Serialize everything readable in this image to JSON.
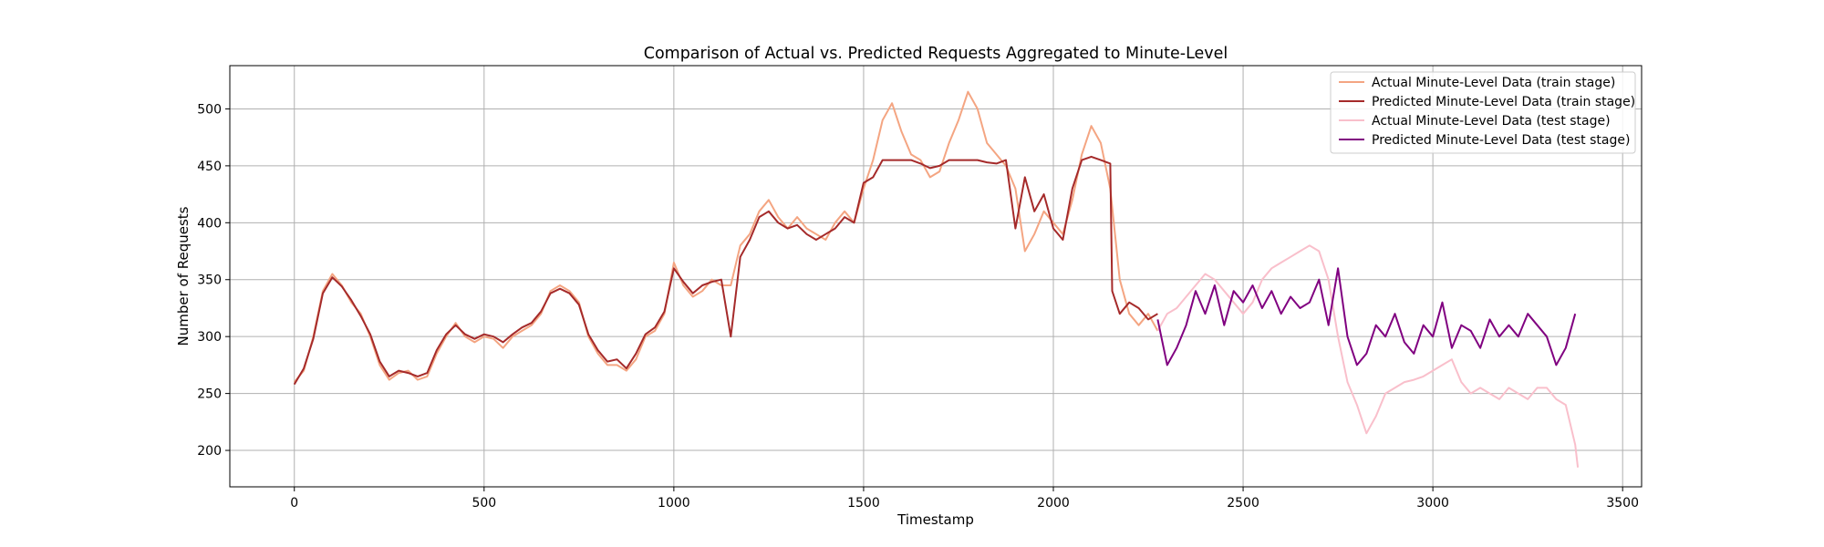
{
  "chart_data": {
    "type": "line",
    "title": "Comparison of Actual vs. Predicted Requests Aggregated to Minute-Level",
    "xlabel": "Timestamp",
    "ylabel": "Number of Requests",
    "xlim": [
      -170,
      3550
    ],
    "ylim": [
      168,
      538
    ],
    "xticks": [
      0,
      500,
      1000,
      1500,
      2000,
      2500,
      3000,
      3500
    ],
    "yticks": [
      200,
      250,
      300,
      350,
      400,
      450,
      500
    ],
    "grid": true,
    "legend_position": "top-right",
    "series": [
      {
        "name": "Actual Minute-Level Data (train stage)",
        "color": "#f4a582",
        "x": [
          0,
          25,
          50,
          75,
          100,
          125,
          150,
          175,
          200,
          225,
          250,
          275,
          300,
          325,
          350,
          375,
          400,
          425,
          450,
          475,
          500,
          525,
          550,
          575,
          600,
          625,
          650,
          675,
          700,
          725,
          750,
          775,
          800,
          825,
          850,
          875,
          900,
          925,
          950,
          975,
          1000,
          1025,
          1050,
          1075,
          1100,
          1125,
          1150,
          1175,
          1200,
          1225,
          1250,
          1275,
          1300,
          1325,
          1350,
          1375,
          1400,
          1425,
          1450,
          1475,
          1500,
          1525,
          1550,
          1575,
          1600,
          1625,
          1650,
          1675,
          1700,
          1725,
          1750,
          1775,
          1800,
          1825,
          1850,
          1875,
          1900,
          1925,
          1950,
          1975,
          2000,
          2025,
          2050,
          2075,
          2100,
          2125,
          2150,
          2175,
          2200,
          2225,
          2250,
          2275
        ],
        "y": [
          260,
          270,
          300,
          340,
          355,
          345,
          330,
          320,
          300,
          275,
          262,
          268,
          270,
          262,
          265,
          285,
          300,
          312,
          300,
          295,
          300,
          298,
          290,
          300,
          305,
          310,
          320,
          340,
          345,
          340,
          330,
          300,
          285,
          275,
          275,
          270,
          280,
          300,
          305,
          320,
          365,
          345,
          335,
          340,
          350,
          345,
          345,
          380,
          390,
          410,
          420,
          405,
          395,
          405,
          395,
          390,
          385,
          400,
          410,
          400,
          430,
          455,
          490,
          505,
          480,
          460,
          455,
          440,
          445,
          470,
          490,
          515,
          500,
          470,
          460,
          450,
          430,
          375,
          390,
          410,
          400,
          390,
          420,
          460,
          485,
          470,
          430,
          350,
          320,
          310,
          320,
          305
        ],
        "values": [
          260,
          270,
          300,
          340,
          355,
          345,
          330,
          320,
          300,
          275,
          262,
          268,
          270,
          262,
          265,
          285,
          300,
          312,
          300,
          295,
          300,
          298,
          290,
          300,
          305,
          310,
          320,
          340,
          345,
          340,
          330,
          300,
          285,
          275,
          275,
          270,
          280,
          300,
          305,
          320,
          365,
          345,
          335,
          340,
          350,
          345,
          345,
          380,
          390,
          410,
          420,
          405,
          395,
          405,
          395,
          390,
          385,
          400,
          410,
          400,
          430,
          455,
          490,
          505,
          480,
          460,
          455,
          440,
          445,
          470,
          490,
          515,
          500,
          470,
          460,
          450,
          430,
          375,
          390,
          410,
          400,
          390,
          420,
          460,
          485,
          470,
          430,
          350,
          320,
          310,
          320,
          305
        ]
      },
      {
        "name": "Predicted Minute-Level Data (train stage)",
        "color": "#a52a2a",
        "x": [
          0,
          25,
          50,
          75,
          100,
          125,
          150,
          175,
          200,
          225,
          250,
          275,
          300,
          325,
          350,
          375,
          400,
          425,
          450,
          475,
          500,
          525,
          550,
          575,
          600,
          625,
          650,
          675,
          700,
          725,
          750,
          775,
          800,
          825,
          850,
          875,
          900,
          925,
          950,
          975,
          1000,
          1025,
          1050,
          1075,
          1100,
          1125,
          1150,
          1175,
          1200,
          1225,
          1250,
          1275,
          1300,
          1325,
          1350,
          1375,
          1400,
          1425,
          1450,
          1475,
          1500,
          1525,
          1550,
          1575,
          1600,
          1625,
          1650,
          1675,
          1700,
          1725,
          1750,
          1775,
          1800,
          1825,
          1850,
          1875,
          1900,
          1925,
          1950,
          1975,
          2000,
          2025,
          2050,
          2075,
          2100,
          2125,
          2150,
          2155,
          2175,
          2200,
          2225,
          2250,
          2275
        ],
        "y": [
          258,
          272,
          298,
          338,
          352,
          344,
          332,
          318,
          302,
          278,
          265,
          270,
          268,
          265,
          268,
          288,
          302,
          310,
          302,
          298,
          302,
          300,
          295,
          302,
          308,
          312,
          322,
          338,
          342,
          338,
          328,
          302,
          288,
          278,
          280,
          272,
          285,
          302,
          308,
          322,
          360,
          348,
          338,
          345,
          348,
          350,
          300,
          370,
          385,
          405,
          410,
          400,
          395,
          398,
          390,
          385,
          390,
          395,
          405,
          400,
          435,
          440,
          455,
          455,
          455,
          455,
          452,
          448,
          450,
          455,
          455,
          455,
          455,
          453,
          452,
          455,
          395,
          440,
          410,
          425,
          395,
          385,
          430,
          455,
          458,
          455,
          452,
          340,
          320,
          330,
          325,
          315,
          320
        ],
        "values": [
          258,
          272,
          298,
          338,
          352,
          344,
          332,
          318,
          302,
          278,
          265,
          270,
          268,
          265,
          268,
          288,
          302,
          310,
          302,
          298,
          302,
          300,
          295,
          302,
          308,
          312,
          322,
          338,
          342,
          338,
          328,
          302,
          288,
          278,
          280,
          272,
          285,
          302,
          308,
          322,
          360,
          348,
          338,
          345,
          348,
          350,
          300,
          370,
          385,
          405,
          410,
          400,
          395,
          398,
          390,
          385,
          390,
          395,
          405,
          400,
          435,
          440,
          455,
          455,
          455,
          455,
          452,
          448,
          450,
          455,
          455,
          455,
          455,
          453,
          452,
          455,
          395,
          440,
          410,
          425,
          395,
          385,
          430,
          455,
          458,
          455,
          452,
          340,
          320,
          330,
          325,
          315,
          320
        ]
      },
      {
        "name": "Actual Minute-Level Data (test stage)",
        "color": "#f9bfcb",
        "x": [
          2275,
          2300,
          2325,
          2350,
          2375,
          2400,
          2425,
          2450,
          2475,
          2500,
          2525,
          2550,
          2575,
          2600,
          2625,
          2650,
          2675,
          2700,
          2725,
          2750,
          2775,
          2800,
          2825,
          2850,
          2875,
          2900,
          2925,
          2950,
          2975,
          3000,
          3025,
          3050,
          3075,
          3100,
          3125,
          3150,
          3175,
          3200,
          3225,
          3250,
          3275,
          3300,
          3325,
          3350,
          3375,
          3382
        ],
        "y": [
          305,
          320,
          325,
          335,
          345,
          355,
          350,
          340,
          330,
          320,
          330,
          350,
          360,
          365,
          370,
          375,
          380,
          375,
          350,
          300,
          260,
          240,
          215,
          230,
          250,
          255,
          260,
          262,
          265,
          270,
          275,
          280,
          260,
          250,
          255,
          250,
          245,
          255,
          250,
          245,
          255,
          255,
          245,
          240,
          205,
          185
        ],
        "values": [
          305,
          320,
          325,
          335,
          345,
          355,
          350,
          340,
          330,
          320,
          330,
          350,
          360,
          365,
          370,
          375,
          380,
          375,
          350,
          300,
          260,
          240,
          215,
          230,
          250,
          255,
          260,
          262,
          265,
          270,
          275,
          280,
          260,
          250,
          255,
          250,
          245,
          255,
          250,
          245,
          255,
          255,
          245,
          240,
          205,
          185
        ]
      },
      {
        "name": "Predicted Minute-Level Data (test stage)",
        "color": "#800080",
        "x": [
          2275,
          2300,
          2325,
          2350,
          2375,
          2400,
          2425,
          2450,
          2475,
          2500,
          2525,
          2550,
          2575,
          2600,
          2625,
          2650,
          2675,
          2700,
          2725,
          2750,
          2775,
          2800,
          2825,
          2850,
          2875,
          2900,
          2925,
          2950,
          2975,
          3000,
          3025,
          3050,
          3075,
          3100,
          3125,
          3150,
          3175,
          3200,
          3225,
          3250,
          3275,
          3300,
          3325,
          3350,
          3375
        ],
        "y": [
          315,
          275,
          290,
          310,
          340,
          320,
          345,
          310,
          340,
          330,
          345,
          325,
          340,
          320,
          335,
          325,
          330,
          350,
          310,
          360,
          300,
          275,
          285,
          310,
          300,
          320,
          295,
          285,
          310,
          300,
          330,
          290,
          310,
          305,
          290,
          315,
          300,
          310,
          300,
          320,
          310,
          300,
          275,
          290,
          320
        ],
        "values": [
          315,
          275,
          290,
          310,
          340,
          320,
          345,
          310,
          340,
          330,
          345,
          325,
          340,
          320,
          335,
          325,
          330,
          350,
          310,
          360,
          300,
          275,
          285,
          310,
          300,
          320,
          295,
          285,
          310,
          300,
          330,
          290,
          310,
          305,
          290,
          315,
          300,
          310,
          300,
          320,
          310,
          300,
          275,
          290,
          320
        ]
      }
    ]
  }
}
